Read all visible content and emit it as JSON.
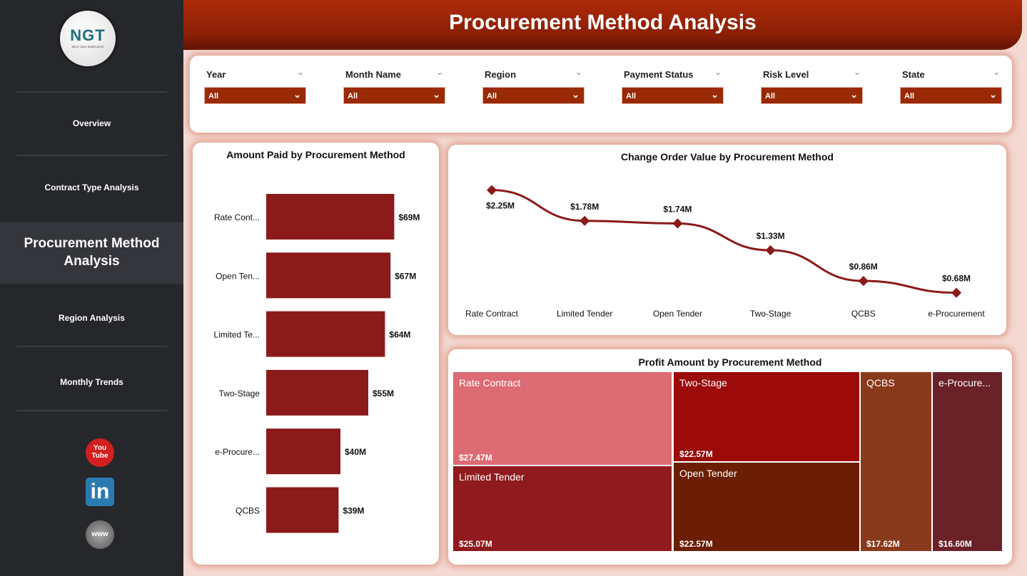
{
  "logo": {
    "text": "NGT",
    "tagline": "NEXT GEN TEMPLATES"
  },
  "sidebar": {
    "items": [
      {
        "label": "Overview"
      },
      {
        "label": "Contract Type Analysis"
      },
      {
        "label": "Procurement Method Analysis",
        "active": true
      },
      {
        "label": "Region Analysis"
      },
      {
        "label": "Monthly Trends"
      }
    ],
    "social": [
      {
        "icon": "youtube-icon",
        "label": "You Tube"
      },
      {
        "icon": "linkedin-icon",
        "label": "in"
      },
      {
        "icon": "web-icon",
        "label": "www"
      }
    ]
  },
  "header": {
    "title": "Procurement Method Analysis"
  },
  "filters": [
    {
      "label": "Year",
      "value": "All"
    },
    {
      "label": "Month Name",
      "value": "All"
    },
    {
      "label": "Region",
      "value": "All"
    },
    {
      "label": "Payment Status",
      "value": "All"
    },
    {
      "label": "Risk Level",
      "value": "All"
    },
    {
      "label": "State",
      "value": "All"
    }
  ],
  "colors": {
    "bar": "#8b1a1a",
    "line": "#8b1a1a",
    "header": "#ad2a08",
    "sidebar": "#25272b"
  },
  "chart_data": [
    {
      "type": "bar",
      "orientation": "horizontal",
      "title": "Amount Paid by Procurement Method",
      "categories": [
        "Rate Cont...",
        "Open Ten...",
        "Limited Te...",
        "Two-Stage",
        "e-Procure...",
        "QCBS"
      ],
      "values": [
        69,
        67,
        64,
        55,
        40,
        39
      ],
      "labels": [
        "$69M",
        "$67M",
        "$64M",
        "$55M",
        "$40M",
        "$39M"
      ],
      "unit": "$M"
    },
    {
      "type": "line",
      "title": "Change Order Value by Procurement Method",
      "categories": [
        "Rate Contract",
        "Limited Tender",
        "Open Tender",
        "Two-Stage",
        "QCBS",
        "e-Procurement"
      ],
      "values": [
        2.25,
        1.78,
        1.74,
        1.33,
        0.86,
        0.68
      ],
      "labels": [
        "$2.25M",
        "$1.78M",
        "$1.74M",
        "$1.33M",
        "$0.86M",
        "$0.68M"
      ],
      "unit": "$M"
    },
    {
      "type": "treemap",
      "title": "Profit Amount by Procurement Method",
      "items": [
        {
          "name": "Rate Contract",
          "value": 27.47,
          "label": "$27.47M",
          "color": "#dc6b73"
        },
        {
          "name": "Limited Tender",
          "value": 25.07,
          "label": "$25.07M",
          "color": "#8f1b1e"
        },
        {
          "name": "Two-Stage",
          "value": 22.57,
          "label": "$22.57M",
          "color": "#9c0a0a"
        },
        {
          "name": "Open Tender",
          "value": 22.57,
          "label": "$22.57M",
          "color": "#6b1e03"
        },
        {
          "name": "QCBS",
          "value": 17.62,
          "label": "$17.62M",
          "color": "#8a3a1c"
        },
        {
          "name": "e-Procure...",
          "value": 16.6,
          "label": "$16.60M",
          "color": "#6a2228"
        }
      ]
    }
  ]
}
